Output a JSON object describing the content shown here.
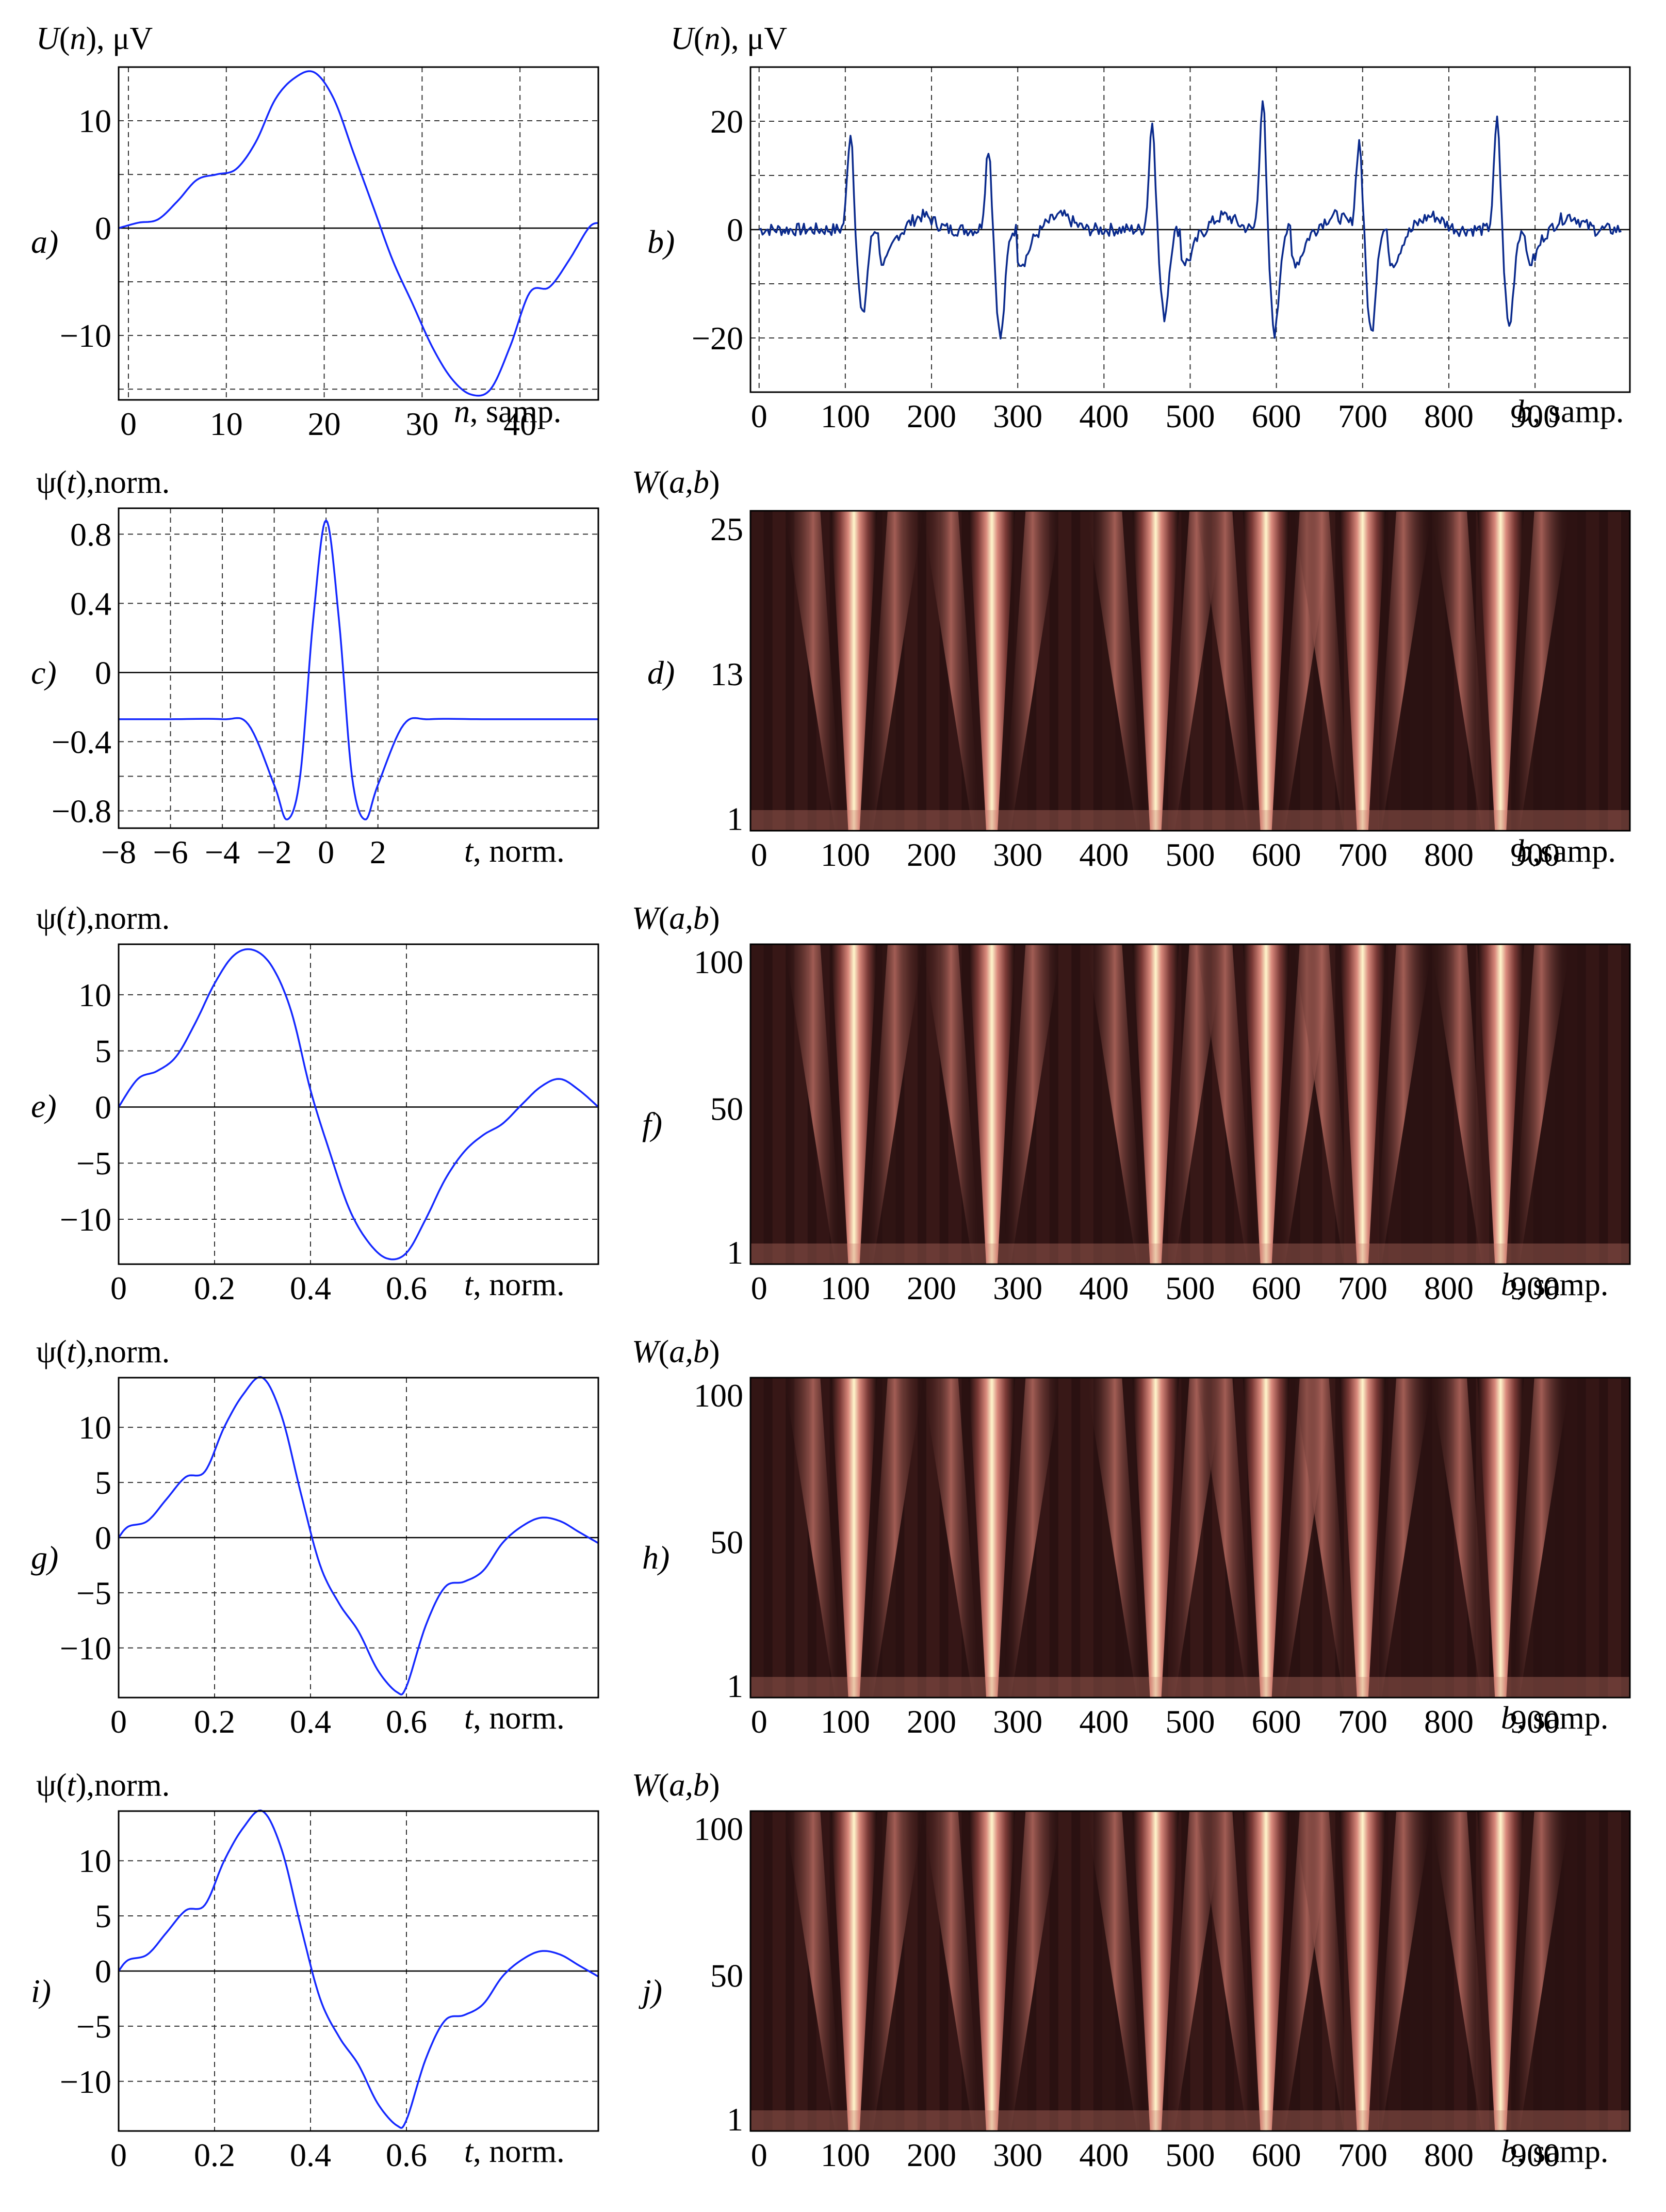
{
  "colors": {
    "signal_blue": "#1428ff",
    "signal_darkblue": "#0a2a8c",
    "grid": "#333333",
    "scalogram_dark": "#1e0c0c",
    "scalogram_mid": "#c97a6e",
    "scalogram_light": "#fff6cc"
  },
  "panels": [
    {
      "id": "a",
      "letter": "a)",
      "kind": "line"
    },
    {
      "id": "b",
      "letter": "b)",
      "kind": "line"
    },
    {
      "id": "c",
      "letter": "c)",
      "kind": "line"
    },
    {
      "id": "d",
      "letter": "d)",
      "kind": "scalogram"
    },
    {
      "id": "e",
      "letter": "e)",
      "kind": "line"
    },
    {
      "id": "f",
      "letter": "f)",
      "kind": "scalogram"
    },
    {
      "id": "g",
      "letter": "g)",
      "kind": "line"
    },
    {
      "id": "h",
      "letter": "h)",
      "kind": "scalogram"
    },
    {
      "id": "i",
      "letter": "i)",
      "kind": "line"
    },
    {
      "id": "j",
      "letter": "j)",
      "kind": "scalogram"
    }
  ],
  "labels": {
    "U": "U",
    "n": "n",
    "uv": ", μV",
    "psi": "ψ",
    "t": "t",
    "norm": ",norm.",
    "W": "W",
    "ab": "a,b",
    "n_samp": ", samp.",
    "t_norm": ", norm.",
    "b_samp": ", samp.",
    "b_samp_nospace": ",samp.",
    "b": "b"
  },
  "chart_data": [
    {
      "id": "a",
      "type": "line",
      "ylabel": "U(n), μV",
      "xlabel": "n, samp.",
      "xlim": [
        -1,
        48
      ],
      "ylim": [
        -16,
        15
      ],
      "xticks": [
        0,
        10,
        20,
        30,
        40
      ],
      "yticks": [
        -10,
        0,
        10
      ],
      "grid": true,
      "hline": 0,
      "series": [
        {
          "color": "#1428ff",
          "x": [
            -1,
            1,
            3,
            5,
            7,
            9,
            11,
            13,
            15,
            17,
            19,
            21,
            23,
            25,
            27,
            29,
            31,
            33,
            35,
            37,
            39,
            41,
            43,
            45,
            47,
            48
          ],
          "y": [
            0,
            0.5,
            0.8,
            2.5,
            4.5,
            5,
            5.5,
            8,
            12,
            14,
            14.5,
            12,
            7,
            2,
            -3,
            -7,
            -11,
            -14,
            -15.5,
            -15,
            -11,
            -6,
            -5.5,
            -3,
            0,
            0.5
          ]
        }
      ]
    },
    {
      "id": "b",
      "type": "line",
      "ylabel": "U(n), μV",
      "xlabel": "b, samp.",
      "xlim": [
        -10,
        1010
      ],
      "ylim": [
        -30,
        30
      ],
      "xticks": [
        0,
        100,
        200,
        300,
        400,
        500,
        600,
        700,
        800,
        900
      ],
      "yticks": [
        -20,
        0,
        20
      ],
      "grid": true,
      "hline": 0,
      "beats": [
        {
          "pos": 110,
          "peak": 18,
          "trough": -16
        },
        {
          "pos": 270,
          "peak": 15,
          "trough": -20
        },
        {
          "pos": 460,
          "peak": 20,
          "trough": -16
        },
        {
          "pos": 588,
          "peak": 24,
          "trough": -19
        },
        {
          "pos": 700,
          "peak": 16,
          "trough": -19
        },
        {
          "pos": 860,
          "peak": 20,
          "trough": -18
        }
      ],
      "series": [
        {
          "color": "#0a2a8c"
        }
      ]
    },
    {
      "id": "c",
      "type": "line",
      "ylabel": "ψ(t),norm.",
      "xlabel": "t, norm.",
      "xlim": [
        -8,
        10.5
      ],
      "ylim": [
        -0.9,
        0.95
      ],
      "xticks": [
        -8,
        -6,
        -4,
        -2,
        0,
        2
      ],
      "yticks": [
        -0.8,
        -0.4,
        0,
        0.4,
        0.8
      ],
      "ytick_labels": [
        "−0.8",
        "−0.4",
        "0",
        "0.4",
        "0.8"
      ],
      "xtick_labels": [
        "−8",
        "−6",
        "−4",
        "−2",
        "0",
        "2"
      ],
      "grid": true,
      "hline": 0,
      "series": [
        {
          "color": "#1428ff",
          "formula": "mexican_hat",
          "x": [
            -8,
            -6,
            -4,
            -3,
            -2,
            -1.5,
            -1,
            -0.5,
            0,
            0.5,
            1,
            1.5,
            2,
            3,
            4,
            6,
            8,
            10.5
          ],
          "y": [
            -0.27,
            -0.27,
            -0.27,
            -0.3,
            -0.65,
            -0.85,
            -0.6,
            0.3,
            0.88,
            0.3,
            -0.6,
            -0.85,
            -0.65,
            -0.3,
            -0.27,
            -0.27,
            -0.27,
            -0.27
          ]
        }
      ]
    },
    {
      "id": "d",
      "type": "heatmap",
      "ylabel": "W(a,b)",
      "xlabel": "b,samp.",
      "xlim": [
        -10,
        1010
      ],
      "yticks": [
        1,
        13,
        25
      ],
      "ylim": [
        0,
        26.5
      ],
      "xticks": [
        0,
        100,
        200,
        300,
        400,
        500,
        600,
        700,
        800,
        900
      ]
    },
    {
      "id": "e",
      "type": "line",
      "ylabel": "ψ(t),norm.",
      "xlabel": "t, norm.",
      "xlim": [
        0,
        1
      ],
      "ylim": [
        -14,
        14.5
      ],
      "xticks": [
        0,
        0.2,
        0.4,
        0.6
      ],
      "yticks": [
        -10,
        -5,
        0,
        5,
        10
      ],
      "grid": true,
      "hline": 0,
      "series": [
        {
          "color": "#1428ff",
          "x": [
            0,
            0.04,
            0.08,
            0.12,
            0.16,
            0.2,
            0.24,
            0.28,
            0.32,
            0.36,
            0.4,
            0.44,
            0.48,
            0.52,
            0.56,
            0.6,
            0.64,
            0.68,
            0.72,
            0.76,
            0.8,
            0.84,
            0.88,
            0.92,
            0.96,
            1.0
          ],
          "y": [
            0,
            2.5,
            3.2,
            4.5,
            7.5,
            11,
            13.5,
            14,
            12.5,
            8.5,
            1.5,
            -4,
            -9,
            -12,
            -13.5,
            -13,
            -10,
            -6.5,
            -4,
            -2.5,
            -1.5,
            0.2,
            1.8,
            2.5,
            1.5,
            0
          ]
        }
      ]
    },
    {
      "id": "f",
      "type": "heatmap",
      "ylabel": "W(a,b)",
      "xlabel": "b, samp.",
      "xlim": [
        -10,
        1010
      ],
      "yticks": [
        1,
        50,
        100
      ],
      "ylim": [
        -3,
        106
      ],
      "xticks": [
        0,
        100,
        200,
        300,
        400,
        500,
        600,
        700,
        800,
        900
      ]
    },
    {
      "id": "g",
      "type": "line",
      "ylabel": "ψ(t),norm.",
      "xlabel": "t, norm.",
      "xlim": [
        0,
        1
      ],
      "ylim": [
        -14.5,
        14.5
      ],
      "xticks": [
        0,
        0.2,
        0.4,
        0.6
      ],
      "yticks": [
        -10,
        -5,
        0,
        5,
        10
      ],
      "grid": true,
      "hline": 0,
      "series": [
        {
          "color": "#1428ff",
          "x": [
            0,
            0.02,
            0.06,
            0.1,
            0.14,
            0.18,
            0.22,
            0.26,
            0.3,
            0.34,
            0.38,
            0.42,
            0.46,
            0.5,
            0.54,
            0.58,
            0.6,
            0.64,
            0.68,
            0.72,
            0.76,
            0.8,
            0.84,
            0.88,
            0.92,
            0.96,
            1.0
          ],
          "y": [
            0,
            1,
            1.5,
            3.5,
            5.5,
            6,
            10,
            13,
            14.5,
            11,
            4,
            -2.5,
            -6,
            -8.5,
            -12,
            -14,
            -13.5,
            -8,
            -4.5,
            -4,
            -3,
            -0.5,
            1,
            1.8,
            1.5,
            0.5,
            -0.5
          ]
        }
      ]
    },
    {
      "id": "h",
      "type": "heatmap",
      "ylabel": "W(a,b)",
      "xlabel": "b, samp.",
      "xlim": [
        -10,
        1010
      ],
      "yticks": [
        1,
        50,
        100
      ],
      "ylim": [
        -3,
        106
      ],
      "xticks": [
        0,
        100,
        200,
        300,
        400,
        500,
        600,
        700,
        800,
        900
      ]
    },
    {
      "id": "i",
      "type": "line",
      "ylabel": "ψ(t),norm.",
      "xlabel": "t, norm.",
      "xlim": [
        0,
        1
      ],
      "ylim": [
        -14.5,
        14.5
      ],
      "xticks": [
        0,
        0.2,
        0.4,
        0.6
      ],
      "yticks": [
        -10,
        -5,
        0,
        5,
        10
      ],
      "grid": true,
      "hline": 0,
      "series": [
        {
          "color": "#1428ff",
          "x": [
            0,
            0.02,
            0.06,
            0.1,
            0.14,
            0.18,
            0.22,
            0.26,
            0.3,
            0.34,
            0.38,
            0.42,
            0.46,
            0.5,
            0.54,
            0.58,
            0.6,
            0.64,
            0.68,
            0.72,
            0.76,
            0.8,
            0.84,
            0.88,
            0.92,
            0.96,
            1.0
          ],
          "y": [
            0,
            1,
            1.5,
            3.5,
            5.5,
            6,
            10,
            13,
            14.5,
            11,
            4,
            -2.5,
            -6,
            -8.5,
            -12,
            -14,
            -13.5,
            -8,
            -4.5,
            -4,
            -3,
            -0.5,
            1,
            1.8,
            1.5,
            0.5,
            -0.5
          ]
        }
      ]
    },
    {
      "id": "j",
      "type": "heatmap",
      "ylabel": "W(a,b)",
      "xlabel": "b, samp.",
      "xlim": [
        -10,
        1010
      ],
      "yticks": [
        1,
        50,
        100
      ],
      "ylim": [
        -3,
        106
      ],
      "xticks": [
        0,
        100,
        200,
        300,
        400,
        500,
        600,
        700,
        800,
        900
      ]
    }
  ]
}
